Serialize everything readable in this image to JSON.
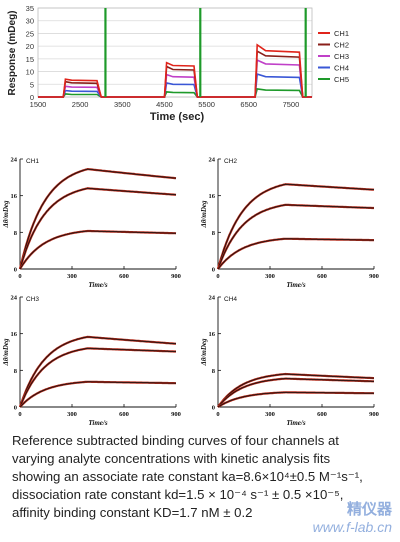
{
  "chart_data": [
    {
      "type": "line",
      "title": "",
      "xlabel": "Time (sec)",
      "ylabel": "Response (mDeg)",
      "xlim": [
        1500,
        8000
      ],
      "ylim": [
        0,
        35
      ],
      "xticks": [
        1500,
        2500,
        3500,
        4500,
        5500,
        6500,
        7500
      ],
      "yticks": [
        0,
        5,
        10,
        15,
        20,
        25,
        30,
        35
      ],
      "grid": true,
      "legend": "right",
      "series": [
        {
          "name": "CH1",
          "color": "#e0241b",
          "points": [
            [
              1500,
              0
            ],
            [
              2100,
              0
            ],
            [
              2150,
              7
            ],
            [
              2300,
              6.6
            ],
            [
              2900,
              6.4
            ],
            [
              3000,
              0
            ],
            [
              3800,
              0
            ],
            [
              4500,
              0
            ],
            [
              4550,
              13.5
            ],
            [
              4700,
              12.4
            ],
            [
              5200,
              12.2
            ],
            [
              5280,
              0
            ],
            [
              6200,
              0
            ],
            [
              6650,
              0
            ],
            [
              6700,
              20.5
            ],
            [
              6900,
              18.2
            ],
            [
              7700,
              17.6
            ],
            [
              7780,
              0
            ],
            [
              8000,
              0
            ]
          ]
        },
        {
          "name": "CH2",
          "color": "#8a1f1a",
          "points": [
            [
              1500,
              0
            ],
            [
              2100,
              0
            ],
            [
              2150,
              6
            ],
            [
              2300,
              5.6
            ],
            [
              2900,
              5.4
            ],
            [
              3000,
              0
            ],
            [
              3800,
              0
            ],
            [
              4500,
              0
            ],
            [
              4550,
              12
            ],
            [
              4700,
              10.8
            ],
            [
              5200,
              10.6
            ],
            [
              5280,
              0
            ],
            [
              6200,
              0
            ],
            [
              6650,
              0
            ],
            [
              6700,
              18
            ],
            [
              6900,
              16.2
            ],
            [
              7700,
              15.7
            ],
            [
              7780,
              0
            ],
            [
              8000,
              0
            ]
          ]
        },
        {
          "name": "CH3",
          "color": "#c040c8",
          "points": [
            [
              1500,
              0
            ],
            [
              2100,
              0
            ],
            [
              2150,
              4.2
            ],
            [
              2300,
              3.9
            ],
            [
              2900,
              3.8
            ],
            [
              3000,
              0
            ],
            [
              3800,
              0
            ],
            [
              4500,
              0
            ],
            [
              4550,
              8.8
            ],
            [
              4700,
              8
            ],
            [
              5200,
              7.8
            ],
            [
              5280,
              0
            ],
            [
              6200,
              0
            ],
            [
              6650,
              0
            ],
            [
              6700,
              14.5
            ],
            [
              6900,
              13
            ],
            [
              7700,
              12.6
            ],
            [
              7780,
              0
            ],
            [
              8000,
              0
            ]
          ]
        },
        {
          "name": "CH4",
          "color": "#3a57d6",
          "points": [
            [
              1500,
              0
            ],
            [
              2100,
              0
            ],
            [
              2150,
              2.5
            ],
            [
              2300,
              2.3
            ],
            [
              2900,
              2.2
            ],
            [
              3000,
              0
            ],
            [
              3800,
              0
            ],
            [
              4500,
              0
            ],
            [
              4550,
              5.5
            ],
            [
              4700,
              5
            ],
            [
              5200,
              4.9
            ],
            [
              5280,
              0
            ],
            [
              6200,
              0
            ],
            [
              6650,
              0
            ],
            [
              6700,
              9
            ],
            [
              6900,
              8
            ],
            [
              7700,
              7.7
            ],
            [
              7780,
              0
            ],
            [
              8000,
              0
            ]
          ]
        },
        {
          "name": "CH5",
          "color": "#1e9a2a",
          "points": [
            [
              1500,
              0
            ],
            [
              2100,
              0
            ],
            [
              2150,
              1.2
            ],
            [
              2300,
              1
            ],
            [
              2900,
              1
            ],
            [
              3000,
              0
            ],
            [
              3800,
              0
            ],
            [
              4500,
              0
            ],
            [
              4550,
              2
            ],
            [
              4700,
              1.8
            ],
            [
              5200,
              1.7
            ],
            [
              5280,
              0
            ],
            [
              6200,
              0
            ],
            [
              6650,
              0
            ],
            [
              6700,
              3.2
            ],
            [
              6900,
              2.7
            ],
            [
              7700,
              2.6
            ],
            [
              7780,
              0
            ],
            [
              8000,
              0
            ]
          ]
        }
      ],
      "markers": [
        {
          "x": 3100,
          "color": "#1e9a2a"
        },
        {
          "x": 5350,
          "color": "#1e9a2a"
        },
        {
          "x": 7850,
          "color": "#1e9a2a"
        }
      ]
    },
    {
      "type": "line",
      "label": "CH1",
      "xlabel": "Time/s",
      "ylabel": "Δθ/mDeg",
      "xlim": [
        0,
        900
      ],
      "ylim": [
        0,
        24
      ],
      "xticks": [
        0,
        300,
        600,
        900
      ],
      "yticks": [
        0,
        8,
        16,
        24
      ],
      "curves": [
        {
          "plateau": 21.8,
          "end": 19.8
        },
        {
          "plateau": 17.6,
          "end": 16.2
        },
        {
          "plateau": 8.3,
          "end": 7.8
        }
      ]
    },
    {
      "type": "line",
      "label": "CH2",
      "xlabel": "Time/s",
      "ylabel": "Δθ/mDeg",
      "xlim": [
        0,
        900
      ],
      "ylim": [
        0,
        24
      ],
      "xticks": [
        0,
        300,
        600,
        900
      ],
      "yticks": [
        0,
        8,
        16,
        24
      ],
      "curves": [
        {
          "plateau": 18.5,
          "end": 17.3
        },
        {
          "plateau": 14,
          "end": 13.3
        },
        {
          "plateau": 6.6,
          "end": 6.3
        }
      ]
    },
    {
      "type": "line",
      "label": "CH3",
      "xlabel": "Time/s",
      "ylabel": "Δθ/mDeg",
      "xlim": [
        0,
        900
      ],
      "ylim": [
        0,
        24
      ],
      "xticks": [
        0,
        300,
        600,
        900
      ],
      "yticks": [
        0,
        8,
        16,
        24
      ],
      "curves": [
        {
          "plateau": 15.3,
          "end": 13.8
        },
        {
          "plateau": 12.8,
          "end": 12.1
        },
        {
          "plateau": 5.5,
          "end": 5.2
        }
      ]
    },
    {
      "type": "line",
      "label": "CH4",
      "xlabel": "Time/s",
      "ylabel": "Δθ/mDeg",
      "xlim": [
        0,
        900
      ],
      "ylim": [
        0,
        24
      ],
      "xticks": [
        0,
        300,
        600,
        900
      ],
      "yticks": [
        0,
        8,
        16,
        24
      ],
      "curves": [
        {
          "plateau": 7.2,
          "end": 6.3
        },
        {
          "plateau": 6.2,
          "end": 5.6
        },
        {
          "plateau": 3.2,
          "end": 3
        }
      ]
    }
  ],
  "caption": {
    "lines": [
      "Reference subtracted binding curves of four channels at",
      "varying analyte concentrations with kinetic analysis fits",
      "showing an associate rate constant ka=8.6×10⁴±0.5 M⁻¹s⁻¹,",
      "dissociation rate constant kd=1.5 × 10⁻⁴ s⁻¹ ± 0.5 ×10⁻⁵,",
      "affinity binding constant KD=1.7 nM ± 0.2"
    ]
  },
  "watermark": {
    "line1": "精仪器",
    "line2": "www.f-lab.cn"
  }
}
